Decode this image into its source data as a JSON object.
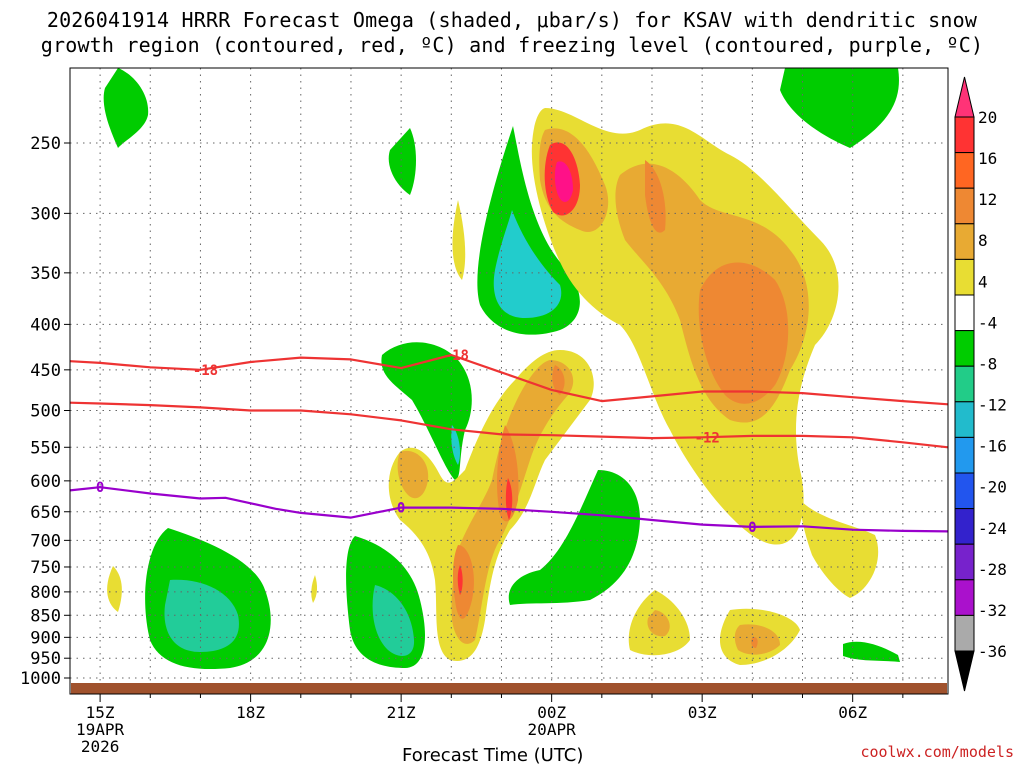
{
  "title_line1": "2026041914 HRRR Forecast Omega (shaded, μbar/s) for KSAV with dendritic snow",
  "title_line2": "growth region (contoured, red, ºC) and freezing level (contoured, purple, ºC)",
  "credit": "coolwx.com/models",
  "chart_data": {
    "type": "heatmap",
    "title": "2026041914 HRRR Forecast Omega (shaded, μbar/s) for KSAV with dendritic snow growth region (contoured, red, ºC) and freezing level (contoured, purple, ºC)",
    "xlabel": "Forecast Time (UTC)",
    "ylabel": "",
    "x_hours": [
      15,
      18,
      21,
      24,
      27,
      30
    ],
    "x_ticks": [
      {
        "hour": 15,
        "label": "15Z",
        "sub1": "19APR",
        "sub2": "2026"
      },
      {
        "hour": 18,
        "label": "18Z",
        "sub1": "",
        "sub2": ""
      },
      {
        "hour": 21,
        "label": "21Z",
        "sub1": "",
        "sub2": ""
      },
      {
        "hour": 24,
        "label": "00Z",
        "sub1": "20APR",
        "sub2": ""
      },
      {
        "hour": 27,
        "label": "03Z",
        "sub1": "",
        "sub2": ""
      },
      {
        "hour": 30,
        "label": "06Z",
        "sub1": "",
        "sub2": ""
      }
    ],
    "xlim": [
      14.4,
      31.9
    ],
    "y_ticks": [
      250,
      300,
      350,
      400,
      450,
      500,
      550,
      600,
      650,
      700,
      750,
      800,
      850,
      900,
      950,
      1000
    ],
    "ylim": [
      200,
      1015
    ],
    "y_scale": "log",
    "grid": true,
    "colorbar": {
      "labels": [
        20,
        16,
        12,
        8,
        4,
        -4,
        -8,
        -12,
        -16,
        -20,
        -24,
        -28,
        -32,
        -36
      ],
      "colors": [
        "#ff3377",
        "#ff3333",
        "#ff6622",
        "#ee8833",
        "#e8aa33",
        "#e8dd33",
        "#ffffff",
        "#00cc00",
        "#22cc88",
        "#22bbcc",
        "#2299ee",
        "#2255ee",
        "#3322cc",
        "#7722cc",
        "#aa11cc",
        "#aaaaaa",
        "#000000"
      ]
    },
    "freezing_level": {
      "label": "0",
      "color": "#9900cc",
      "hours": [
        14.4,
        15.0,
        16.0,
        17.0,
        17.5,
        18.5,
        19.0,
        20.0,
        21.0,
        22.0,
        23.0,
        24.0,
        25.0,
        26.0,
        27.0,
        28.0,
        29.0,
        30.0,
        31.0,
        31.9
      ],
      "pressure": [
        615,
        610,
        620,
        628,
        627,
        645,
        652,
        660,
        643,
        643,
        645,
        650,
        656,
        664,
        672,
        676,
        675,
        681,
        683,
        684
      ]
    },
    "dgz_top": {
      "label": "-18",
      "color": "#ee3333",
      "hours": [
        14.4,
        15.0,
        16.0,
        17.0,
        18.0,
        19.0,
        20.0,
        21.0,
        22.0,
        23.0,
        24.0,
        25.0,
        26.0,
        27.0,
        28.0,
        29.0,
        30.0,
        31.0,
        31.9
      ],
      "pressure": [
        440,
        442,
        447,
        450,
        441,
        436,
        438,
        448,
        433,
        453,
        474,
        488,
        482,
        476,
        476,
        478,
        483,
        488,
        492
      ]
    },
    "dgz_bottom": {
      "label": "-12",
      "color": "#ee3333",
      "hours": [
        14.4,
        15.0,
        16.0,
        17.0,
        18.0,
        19.0,
        20.0,
        21.0,
        22.0,
        23.0,
        24.0,
        25.0,
        26.0,
        27.0,
        28.0,
        29.0,
        30.0,
        31.0,
        31.9
      ],
      "pressure": [
        490,
        491,
        493,
        496,
        500,
        500,
        505,
        513,
        525,
        532,
        533,
        535,
        537,
        536,
        534,
        534,
        536,
        543,
        550
      ]
    },
    "contour_labels": [
      {
        "text": "0",
        "hour": 15.0,
        "p": 610,
        "line": "freezing_level"
      },
      {
        "text": "0",
        "hour": 21.0,
        "p": 643,
        "line": "freezing_level"
      },
      {
        "text": "0",
        "hour": 28.0,
        "p": 676,
        "line": "freezing_level"
      },
      {
        "text": "-18",
        "hour": 17.1,
        "p": 450,
        "line": "dgz_top"
      },
      {
        "text": "-18",
        "hour": 22.1,
        "p": 433,
        "line": "dgz_top"
      },
      {
        "text": "-12",
        "hour": 27.1,
        "p": 536,
        "line": "dgz_bottom"
      }
    ]
  }
}
